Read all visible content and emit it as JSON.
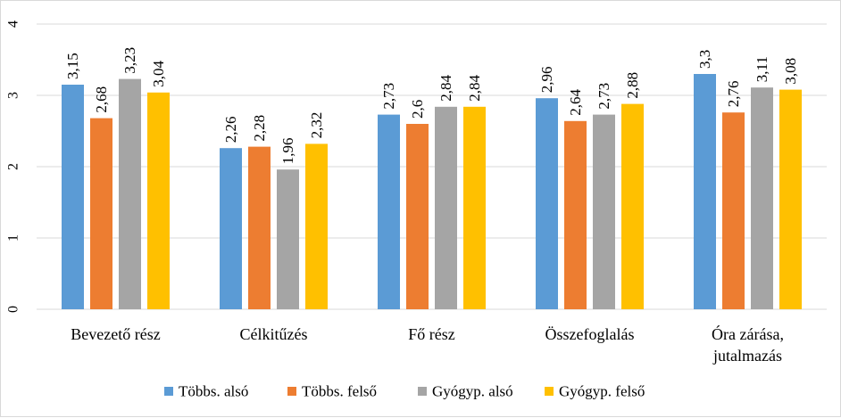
{
  "chart_data": {
    "type": "bar",
    "categories": [
      [
        "Bevezető rész"
      ],
      [
        "Célkitűzés"
      ],
      [
        "Fő rész"
      ],
      [
        "Összefoglalás"
      ],
      [
        "Óra zárása,",
        "jutalmazás"
      ]
    ],
    "series": [
      {
        "name": "Többs. alsó",
        "color": "#5b9bd5",
        "values": [
          3.15,
          2.26,
          2.73,
          2.96,
          3.3
        ],
        "labels": [
          "3,15",
          "2,26",
          "2,73",
          "2,96",
          "3,3"
        ]
      },
      {
        "name": "Többs. felső",
        "color": "#ed7d31",
        "values": [
          2.68,
          2.28,
          2.6,
          2.64,
          2.76
        ],
        "labels": [
          "2,68",
          "2,28",
          "2,6",
          "2,64",
          "2,76"
        ]
      },
      {
        "name": "Gyógyp. alsó",
        "color": "#a5a5a5",
        "values": [
          3.23,
          1.96,
          2.84,
          2.73,
          3.11
        ],
        "labels": [
          "3,23",
          "1,96",
          "2,84",
          "2,73",
          "3,11"
        ]
      },
      {
        "name": "Gyógyp. felső",
        "color": "#ffc000",
        "values": [
          3.04,
          2.32,
          2.84,
          2.88,
          3.08
        ],
        "labels": [
          "3,04",
          "2,32",
          "2,84",
          "2,88",
          "3,08"
        ]
      }
    ],
    "ylim": [
      0,
      4
    ],
    "yticks": [
      "0",
      "1",
      "2",
      "3",
      "4"
    ],
    "grid": true,
    "legend": "bottom"
  }
}
